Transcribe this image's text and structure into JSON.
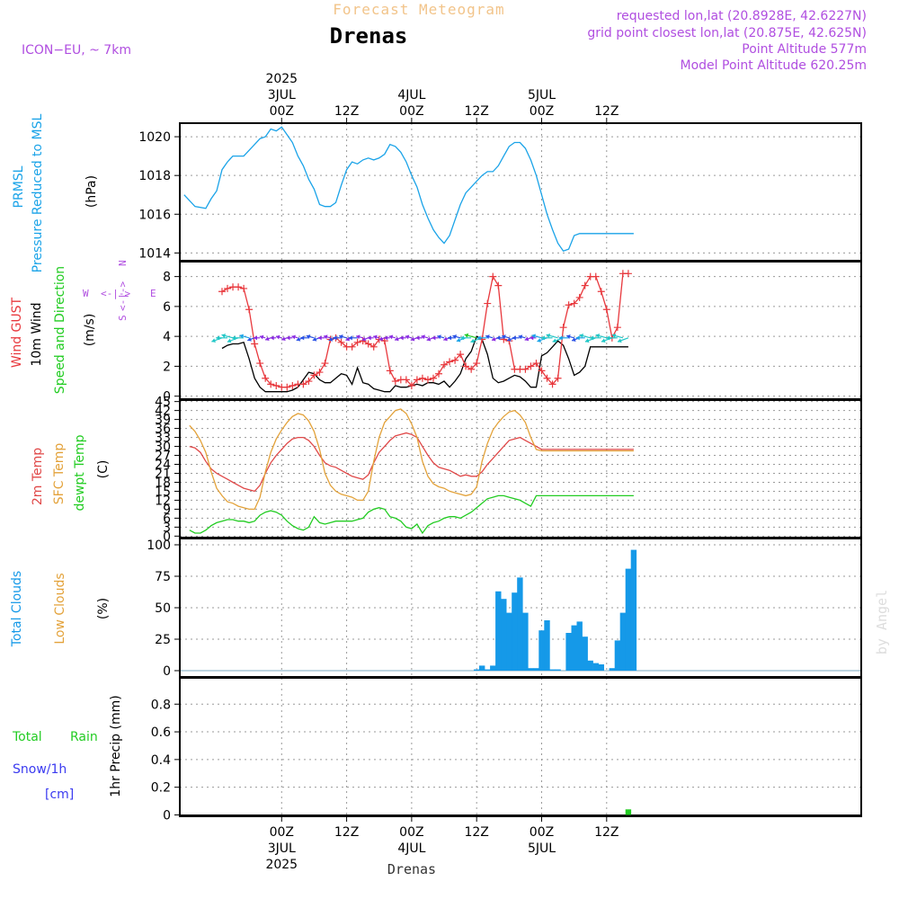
{
  "header": {
    "title": "Forecast Meteogram",
    "location": "Drenas",
    "model": "ICON−EU, ~ 7km",
    "requested": "requested lon,lat (20.8928E, 42.6227N)",
    "gridpoint": "grid point closest lon,lat (20.875E, 42.625N)",
    "altitude": "Point Altitude 577m",
    "model_altitude": "Model Point Altitude 620.25m",
    "watermark": "by Angel",
    "footer_location": "Drenas"
  },
  "time_axis": {
    "top": [
      {
        "hour": 0,
        "lines": [
          "2025",
          "3JUL",
          "00Z"
        ]
      },
      {
        "hour": 12,
        "lines": [
          "12Z"
        ]
      },
      {
        "hour": 24,
        "lines": [
          "4JUL",
          "00Z"
        ]
      },
      {
        "hour": 36,
        "lines": [
          "12Z"
        ]
      },
      {
        "hour": 48,
        "lines": [
          "5JUL",
          "00Z"
        ]
      },
      {
        "hour": 60,
        "lines": [
          "12Z"
        ]
      }
    ],
    "bottom": [
      {
        "hour": 0,
        "lines": [
          "00Z",
          "3JUL",
          "2025"
        ]
      },
      {
        "hour": 12,
        "lines": [
          "12Z"
        ]
      },
      {
        "hour": 24,
        "lines": [
          "00Z",
          "4JUL"
        ]
      },
      {
        "hour": 36,
        "lines": [
          "12Z"
        ]
      },
      {
        "hour": 48,
        "lines": [
          "00Z",
          "5JUL"
        ]
      },
      {
        "hour": 60,
        "lines": [
          "12Z"
        ]
      }
    ]
  },
  "panels": {
    "pressure": {
      "labels": [
        "PRMSL",
        "Pressure Reduced to MSL"
      ],
      "unit": "(hPa)"
    },
    "wind": {
      "labels": [
        "Wind GUST",
        "10m Wind",
        "Speed and Direction"
      ],
      "unit": "(m/s)",
      "compass": [
        "N",
        "S",
        "W",
        "E"
      ]
    },
    "temp": {
      "labels": [
        "2m Temp",
        "SFC Temp",
        "dewpt Temp"
      ],
      "unit": "(C)"
    },
    "clouds": {
      "labels": [
        "Total Clouds",
        "Low Clouds"
      ],
      "unit": "(%)"
    },
    "precip": {
      "labels": [
        "Total",
        "Rain",
        "Snow/1h",
        "[cm]"
      ],
      "ylabel": "1hr Precip (mm)"
    }
  },
  "colors": {
    "pressure": "#1aa3e8",
    "gust": "#e8383d",
    "wind": "#000000",
    "temp2m": "#e04848",
    "tempsfc": "#e3a23a",
    "dewpt": "#22cc22",
    "clouds": "#1599e8",
    "precip": "#22cc22",
    "compass": "#b04ee0",
    "header_pink": "#b04ee0",
    "title_orange": "#f2c48a"
  },
  "chart_data": [
    {
      "type": "line",
      "title": "PRMSL Pressure Reduced to MSL",
      "ylabel": "(hPa)",
      "ylim": [
        1013.6,
        1020.7
      ],
      "yticks": [
        1014,
        1016,
        1018,
        1020
      ],
      "xlim": [
        -18.8,
        107
      ],
      "x": [
        -18,
        -16,
        -14,
        -13,
        -12,
        -11,
        -10,
        -9,
        -8,
        -7,
        -6,
        -5,
        -4,
        -3,
        -2,
        -1,
        0,
        1,
        2,
        3,
        4,
        5,
        6,
        7,
        8,
        9,
        10,
        11,
        12,
        13,
        14,
        15,
        16,
        17,
        18,
        19,
        20,
        21,
        22,
        23,
        24,
        25,
        26,
        27,
        28,
        29,
        30,
        31,
        32,
        33,
        34,
        35,
        36,
        37,
        38,
        39,
        40,
        41,
        42,
        43,
        44,
        45,
        46,
        47,
        48,
        49,
        50,
        51,
        52,
        53,
        54,
        55,
        56,
        57,
        58,
        59,
        60,
        61,
        62,
        63,
        64,
        65
      ],
      "series": [
        {
          "values": [
            1017.0,
            1016.4,
            1016.3,
            1016.8,
            1017.2,
            1018.3,
            1018.7,
            1019.0,
            1019.0,
            1019.0,
            1019.3,
            1019.6,
            1019.9,
            1020.0,
            1020.4,
            1020.3,
            1020.5,
            1020.1,
            1019.7,
            1019.0,
            1018.5,
            1017.8,
            1017.3,
            1016.5,
            1016.4,
            1016.4,
            1016.6,
            1017.5,
            1018.3,
            1018.7,
            1018.6,
            1018.8,
            1018.9,
            1018.8,
            1018.9,
            1019.1,
            1019.6,
            1019.5,
            1019.2,
            1018.7,
            1018.0,
            1017.4,
            1016.5,
            1015.8,
            1015.2,
            1014.8,
            1014.5,
            1014.9,
            1015.7,
            1016.5,
            1017.1,
            1017.4,
            1017.7,
            1018.0,
            1018.2,
            1018.2,
            1018.5,
            1019.0,
            1019.5,
            1019.7,
            1019.7,
            1019.4,
            1018.8,
            1018.0,
            1017.0,
            1016.0,
            1015.2,
            1014.5,
            1014.1,
            1014.2,
            1014.9,
            1015.0,
            1015.0,
            1015.0,
            1015.0,
            1015.0,
            1015.0,
            1015.0,
            1015.0,
            1015.0,
            1015.0,
            1015.0
          ]
        }
      ]
    },
    {
      "type": "line",
      "title": "Wind GUST / 10m Wind",
      "ylabel": "(m/s)",
      "ylim": [
        -0.2,
        9
      ],
      "yticks": [
        0,
        2,
        4,
        6,
        8
      ],
      "x": [
        -11,
        -10,
        -9,
        -8,
        -7,
        -6,
        -5,
        -4,
        -3,
        -2,
        -1,
        0,
        1,
        2,
        3,
        4,
        5,
        6,
        7,
        8,
        9,
        10,
        11,
        12,
        13,
        14,
        15,
        16,
        17,
        18,
        19,
        20,
        21,
        22,
        23,
        24,
        25,
        26,
        27,
        28,
        29,
        30,
        31,
        32,
        33,
        34,
        35,
        36,
        37,
        38,
        39,
        40,
        41,
        42,
        43,
        44,
        45,
        46,
        47,
        48,
        49,
        50,
        51,
        52,
        53,
        54,
        55,
        56,
        57,
        58,
        59,
        60,
        61,
        62,
        63,
        64
      ],
      "series": [
        {
          "name": "Wind GUST",
          "values": [
            7.0,
            7.2,
            7.3,
            7.3,
            7.2,
            5.8,
            3.5,
            2.2,
            1.2,
            0.8,
            0.7,
            0.6,
            0.6,
            0.7,
            0.8,
            0.8,
            1.0,
            1.4,
            1.6,
            2.2,
            3.8,
            3.9,
            3.6,
            3.3,
            3.3,
            3.6,
            3.7,
            3.5,
            3.3,
            3.8,
            3.7,
            1.7,
            1.0,
            1.1,
            1.1,
            0.7,
            1.1,
            1.2,
            1.1,
            1.2,
            1.5,
            2.1,
            2.3,
            2.4,
            2.8,
            2.0,
            1.8,
            2.2,
            3.8,
            6.2,
            8.0,
            7.4,
            3.8,
            3.7,
            1.8,
            1.8,
            1.8,
            2.0,
            2.2,
            1.7,
            1.2,
            0.8,
            1.2,
            4.6,
            6.1,
            6.2,
            6.6,
            7.4,
            8.0,
            8.0,
            7.0,
            5.8,
            3.9,
            4.6,
            8.2,
            8.2
          ]
        },
        {
          "name": "10m Wind",
          "values": [
            3.2,
            3.4,
            3.5,
            3.5,
            3.6,
            2.5,
            1.2,
            0.6,
            0.3,
            0.3,
            0.3,
            0.3,
            0.3,
            0.4,
            0.6,
            1.1,
            1.6,
            1.5,
            1.1,
            0.9,
            0.9,
            1.2,
            1.5,
            1.4,
            0.8,
            1.9,
            0.9,
            0.8,
            0.5,
            0.4,
            0.3,
            0.3,
            0.7,
            0.6,
            0.6,
            0.7,
            0.8,
            0.7,
            0.9,
            0.9,
            0.8,
            1.0,
            0.6,
            1.0,
            1.5,
            2.5,
            3.0,
            4.0,
            3.8,
            2.8,
            1.2,
            0.9,
            1.0,
            1.2,
            1.4,
            1.3,
            1.0,
            0.6,
            0.6,
            2.7,
            2.9,
            3.3,
            3.7,
            3.4,
            2.5,
            1.4,
            1.6,
            2.0,
            3.3,
            3.3,
            3.3,
            3.3,
            3.3,
            3.3,
            3.3,
            3.3
          ]
        }
      ]
    },
    {
      "type": "line",
      "title": "2m Temp / SFC Temp / dewpt Temp",
      "ylabel": "(C)",
      "ylim": [
        -0.5,
        45.5
      ],
      "yticks": [
        0,
        3,
        6,
        9,
        12,
        15,
        18,
        21,
        24,
        27,
        30,
        33,
        36,
        39,
        42,
        45
      ],
      "x": [
        -17,
        -16,
        -15,
        -14,
        -13,
        -12,
        -11,
        -10,
        -9,
        -8,
        -7,
        -6,
        -5,
        -4,
        -3,
        -2,
        -1,
        0,
        1,
        2,
        3,
        4,
        5,
        6,
        7,
        8,
        9,
        10,
        11,
        12,
        13,
        14,
        15,
        16,
        17,
        18,
        19,
        20,
        21,
        22,
        23,
        24,
        25,
        26,
        27,
        28,
        29,
        30,
        31,
        32,
        33,
        34,
        35,
        36,
        37,
        38,
        39,
        40,
        41,
        42,
        43,
        44,
        45,
        46,
        47,
        48,
        49,
        50,
        51,
        52,
        53,
        54,
        55,
        56,
        57,
        58,
        59,
        60,
        61,
        62,
        63,
        64,
        65
      ],
      "series": [
        {
          "name": "2m Temp",
          "values": [
            30.0,
            29.5,
            28.0,
            25.0,
            22.5,
            21.0,
            20.0,
            19.0,
            18.0,
            17.0,
            16.0,
            15.5,
            15.0,
            17.0,
            21.0,
            24.5,
            27.0,
            29.0,
            31.0,
            32.5,
            33.0,
            33.0,
            32.0,
            30.0,
            27.0,
            24.5,
            23.5,
            23.0,
            22.0,
            21.0,
            20.0,
            19.5,
            19.0,
            20.5,
            24.5,
            28.0,
            30.0,
            32.0,
            33.5,
            34.0,
            34.5,
            34.0,
            33.0,
            30.0,
            27.0,
            24.5,
            23.0,
            22.5,
            22.0,
            21.0,
            20.0,
            20.5,
            20.0,
            20.0,
            21.5,
            24.0,
            26.0,
            28.0,
            30.0,
            32.0,
            32.5,
            33.0,
            32.0,
            31.0,
            30.0,
            29.0,
            29.0,
            29.0,
            29.0,
            29.0,
            29.0,
            29.0,
            29.0,
            29.0,
            29.0,
            29.0,
            29.0,
            29.0,
            29.0,
            29.0,
            29.0,
            29.0,
            29.0
          ]
        },
        {
          "name": "SFC Temp",
          "values": [
            37.0,
            35.0,
            32.0,
            28.0,
            21.5,
            16.0,
            13.5,
            11.5,
            11.0,
            10.0,
            9.5,
            9.0,
            9.0,
            13.0,
            21.5,
            28.0,
            32.5,
            35.5,
            38.0,
            40.0,
            41.0,
            40.5,
            38.5,
            35.0,
            29.0,
            21.0,
            17.0,
            15.0,
            14.0,
            13.5,
            13.0,
            12.0,
            12.0,
            15.0,
            25.0,
            33.0,
            38.0,
            40.0,
            42.0,
            42.5,
            41.0,
            37.5,
            33.0,
            25.0,
            20.0,
            17.5,
            16.5,
            16.0,
            15.0,
            14.5,
            14.0,
            13.5,
            14.0,
            16.5,
            25.0,
            31.0,
            35.5,
            38.0,
            40.0,
            41.5,
            42.0,
            40.5,
            38.0,
            33.0,
            29.0,
            28.5,
            28.5,
            28.5,
            28.5,
            28.5,
            28.5,
            28.5,
            28.5,
            28.5,
            28.5,
            28.5,
            28.5,
            28.5,
            28.5,
            28.5,
            28.5,
            28.5,
            28.5
          ]
        },
        {
          "name": "dewpt Temp",
          "values": [
            2.0,
            1.0,
            1.0,
            2.0,
            3.5,
            4.5,
            5.0,
            5.5,
            5.5,
            5.0,
            5.0,
            4.5,
            5.0,
            7.0,
            8.0,
            8.5,
            8.0,
            7.0,
            5.0,
            3.5,
            2.5,
            2.0,
            3.0,
            6.5,
            4.5,
            4.0,
            4.5,
            5.0,
            5.0,
            5.0,
            5.0,
            5.5,
            6.0,
            8.0,
            9.0,
            9.5,
            9.0,
            6.5,
            6.0,
            5.0,
            3.0,
            2.5,
            4.0,
            1.0,
            3.5,
            4.5,
            5.0,
            6.0,
            6.5,
            6.5,
            6.0,
            7.0,
            8.0,
            9.5,
            11.0,
            12.5,
            13.0,
            13.5,
            13.5,
            13.0,
            12.5,
            12.0,
            11.0,
            10.0,
            13.5,
            13.5,
            13.5,
            13.5,
            13.5,
            13.5,
            13.5,
            13.5,
            13.5,
            13.5,
            13.5,
            13.5,
            13.5,
            13.5,
            13.5,
            13.5,
            13.5,
            13.5,
            13.5
          ]
        }
      ]
    },
    {
      "type": "bar",
      "title": "Total Clouds / Low Clouds",
      "ylabel": "(%)",
      "ylim": [
        -5,
        105
      ],
      "yticks": [
        0,
        25,
        50,
        75,
        100
      ],
      "x": [
        36,
        37,
        38,
        39,
        40,
        41,
        42,
        43,
        44,
        45,
        46,
        47,
        48,
        49,
        50,
        51,
        52,
        53,
        54,
        55,
        56,
        57,
        58,
        59,
        60,
        61,
        62,
        63,
        64,
        65,
        66,
        67,
        68,
        69,
        70,
        71,
        72,
        73,
        74
      ],
      "series": [
        {
          "name": "Total Clouds",
          "values": [
            1,
            4,
            1,
            4,
            63,
            57,
            46,
            62,
            74,
            46,
            2,
            2,
            32,
            40,
            1,
            1,
            0,
            30,
            36,
            39,
            27,
            8,
            6,
            5,
            0,
            2,
            24,
            46,
            81,
            96,
            0,
            0,
            0,
            0,
            0,
            0,
            0,
            0,
            0
          ]
        }
      ]
    },
    {
      "type": "bar",
      "title": "1hr Precip",
      "ylabel": "1hr Precip (mm)",
      "ylim": [
        -0.01,
        0.99
      ],
      "yticks": [
        0,
        0.2,
        0.4,
        0.6,
        0.8
      ],
      "x": [
        64
      ],
      "series": [
        {
          "name": "Total Rain",
          "values": [
            0.04
          ]
        }
      ]
    }
  ]
}
